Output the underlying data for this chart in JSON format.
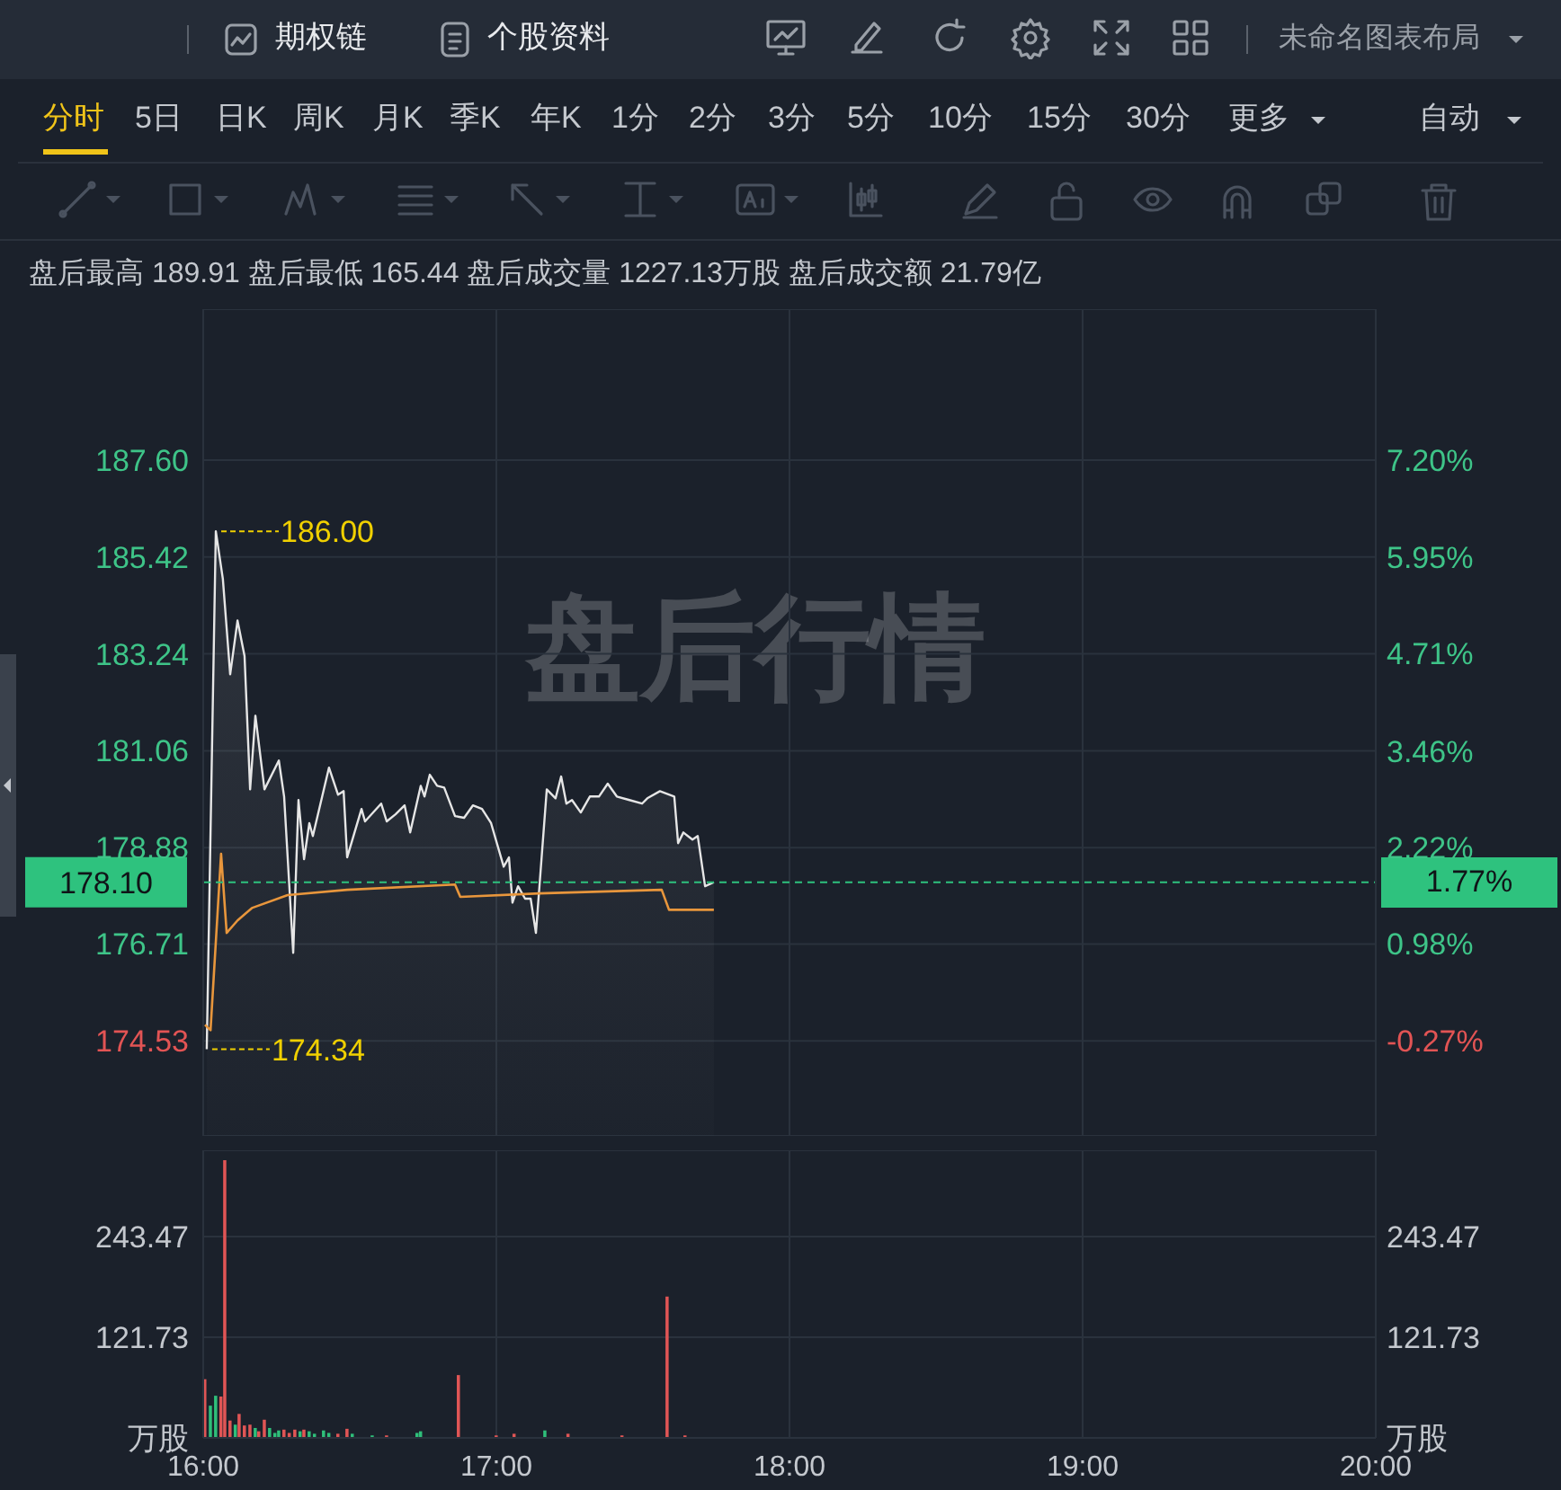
{
  "chart_data": [
    {
      "type": "area",
      "subtitle": "盘后最高 189.91 盘后最低 165.44 盘后成交量 1227.13万股 盘后成交额 21.79亿",
      "annotations": [
        "期权链",
        "个股资料",
        "未命名图表布局",
        "分时",
        "5日",
        "日K",
        "周K",
        "月K",
        "季K",
        "年K",
        "1分",
        "2分",
        "3分",
        "5分",
        "10分",
        "15分",
        "30分",
        "更多",
        "自动",
        "盘后行情",
        {
          "text": "186.00",
          "x": 16.043,
          "y": 186.0
        },
        {
          "text": "174.34",
          "x": 16.012,
          "y": 174.34
        },
        "1.77%"
      ],
      "series": [
        {
          "color": "#e6e6e6",
          "x": [
            16.012,
            16.043,
            16.067,
            16.092,
            16.117,
            16.141,
            16.16,
            16.178,
            16.209,
            16.258,
            16.276,
            16.307,
            16.325,
            16.344,
            16.362,
            16.374,
            16.429,
            16.46,
            16.479,
            16.491,
            16.54,
            16.552,
            16.607,
            16.626,
            16.656,
            16.687,
            16.706,
            16.742,
            16.755,
            16.773,
            16.798,
            16.822,
            16.859,
            16.89,
            16.92,
            16.951,
            16.982,
            17.025,
            17.043,
            17.055,
            17.074,
            17.098,
            17.117,
            17.135,
            17.172,
            17.202,
            17.221,
            17.239,
            17.258,
            17.288,
            17.319,
            17.35,
            17.38,
            17.411,
            17.454,
            17.497,
            17.515,
            17.558,
            17.607,
            17.62,
            17.638,
            17.669,
            17.687,
            17.712,
            17.742
          ],
          "values": [
            174.34,
            186.0,
            184.93,
            182.78,
            183.99,
            183.19,
            180.19,
            181.85,
            180.19,
            180.84,
            180.03,
            176.51,
            179.95,
            178.62,
            179.43,
            179.14,
            180.68,
            180.07,
            180.15,
            178.66,
            179.75,
            179.47,
            179.87,
            179.47,
            179.63,
            179.83,
            179.22,
            180.27,
            180.03,
            180.52,
            180.27,
            180.23,
            179.59,
            179.55,
            179.83,
            179.75,
            179.43,
            178.45,
            178.66,
            177.64,
            178.01,
            177.73,
            177.73,
            176.96,
            180.19,
            179.99,
            180.48,
            179.87,
            179.95,
            179.67,
            180.03,
            180.03,
            180.32,
            180.03,
            179.95,
            179.87,
            179.99,
            180.15,
            180.03,
            178.98,
            179.22,
            179.06,
            179.14,
            178.01,
            178.1
          ]
        },
        {
          "type": "line",
          "color": "#e8963c",
          "x": [
            16.006,
            16.025,
            16.061,
            16.08,
            16.117,
            16.166,
            16.288,
            16.491,
            16.859,
            16.877,
            17.147,
            17.564,
            17.589,
            17.742
          ],
          "values": [
            174.89,
            174.77,
            178.74,
            176.96,
            177.24,
            177.52,
            177.81,
            177.93,
            178.05,
            177.77,
            177.85,
            177.93,
            177.48,
            177.48
          ]
        }
      ],
      "xlim": [
        16,
        20
      ],
      "xticks": [
        16,
        17,
        18,
        19,
        20
      ],
      "ylim": [
        172.39,
        191.0
      ],
      "yticks": [
        174.53,
        176.71,
        178.88,
        181.06,
        183.24,
        185.42,
        {
          "value": 187.6,
          "label": "187.60"
        }
      ],
      "y2lim": [
        -1.49,
        9.14
      ],
      "y2ticks": [
        {
          "value": -0.27,
          "label": "-0.27%"
        },
        {
          "value": 0.98,
          "label": "0.98%"
        },
        {
          "value": 2.22,
          "label": "2.22%"
        },
        {
          "value": 3.46,
          "label": "3.46%"
        },
        {
          "value": 4.71,
          "label": "4.71%"
        },
        {
          "value": 5.95,
          "label": "5.95%"
        },
        {
          "value": 7.2,
          "label": "7.20%"
        }
      ],
      "ref_lines": [
        {
          "axis": "y",
          "value": 178.1,
          "label": "178.10",
          "color": "#2ec27e",
          "line_style": "dashed"
        }
      ],
      "grid": true,
      "tick_labels": "y"
    },
    {
      "type": "bar",
      "series": [
        {
          "x": [
            16.006,
            16.025,
            16.043,
            16.061,
            16.074,
            16.092,
            16.11,
            16.123,
            16.141,
            16.16,
            16.178,
            16.19,
            16.209,
            16.227,
            16.245,
            16.258,
            16.276,
            16.294,
            16.313,
            16.331,
            16.344,
            16.362,
            16.38,
            16.411,
            16.429,
            16.46,
            16.491,
            16.509,
            16.577,
            16.626,
            16.73,
            16.742,
            16.871,
            17.0,
            17.061,
            17.166,
            17.245,
            17.429,
            17.583,
            17.644
          ],
          "values": [
            71,
            39,
            51,
            50,
            336,
            21,
            16,
            29,
            15,
            16,
            12,
            8,
            22,
            12,
            6,
            9,
            10,
            6,
            10,
            8,
            10,
            8,
            5,
            9,
            6,
            5,
            11,
            5,
            3,
            3,
            6,
            8,
            76,
            3,
            5,
            9,
            5,
            3,
            171,
            3
          ],
          "colors": [
            "#e05555",
            "#2fbf7a",
            "#2fbf7a",
            "#e05555",
            "#e05555",
            "#e05555",
            "#2fbf7a",
            "#e05555",
            "#e05555",
            "#e05555",
            "#2fbf7a",
            "#e05555",
            "#e05555",
            "#2fbf7a",
            "#2fbf7a",
            "#2fbf7a",
            "#e05555",
            "#e05555",
            "#e05555",
            "#2fbf7a",
            "#e05555",
            "#2fbf7a",
            "#2fbf7a",
            "#2fbf7a",
            "#2fbf7a",
            "#e05555",
            "#e05555",
            "#2fbf7a",
            "#2fbf7a",
            "#e05555",
            "#2fbf7a",
            "#2fbf7a",
            "#e05555",
            "#e05555",
            "#e05555",
            "#2fbf7a",
            "#e05555",
            "#e05555",
            "#e05555",
            "#e05555"
          ]
        }
      ],
      "xlim": [
        16,
        20
      ],
      "xticks": [
        {
          "value": 16,
          "label": "16:00"
        },
        {
          "value": 17,
          "label": "17:00"
        },
        {
          "value": 18,
          "label": "18:00"
        },
        {
          "value": 19,
          "label": "19:00"
        },
        {
          "value": 20,
          "label": "20:00"
        }
      ],
      "ylim": [
        0,
        348
      ],
      "yticks": [
        {
          "value": 0,
          "label": "万股"
        },
        121.73,
        243.47
      ],
      "y2lim": [
        0,
        348
      ],
      "y2ticks": [
        {
          "value": 0,
          "label": "万股"
        },
        121.73,
        243.47
      ],
      "grid": true
    }
  ]
}
